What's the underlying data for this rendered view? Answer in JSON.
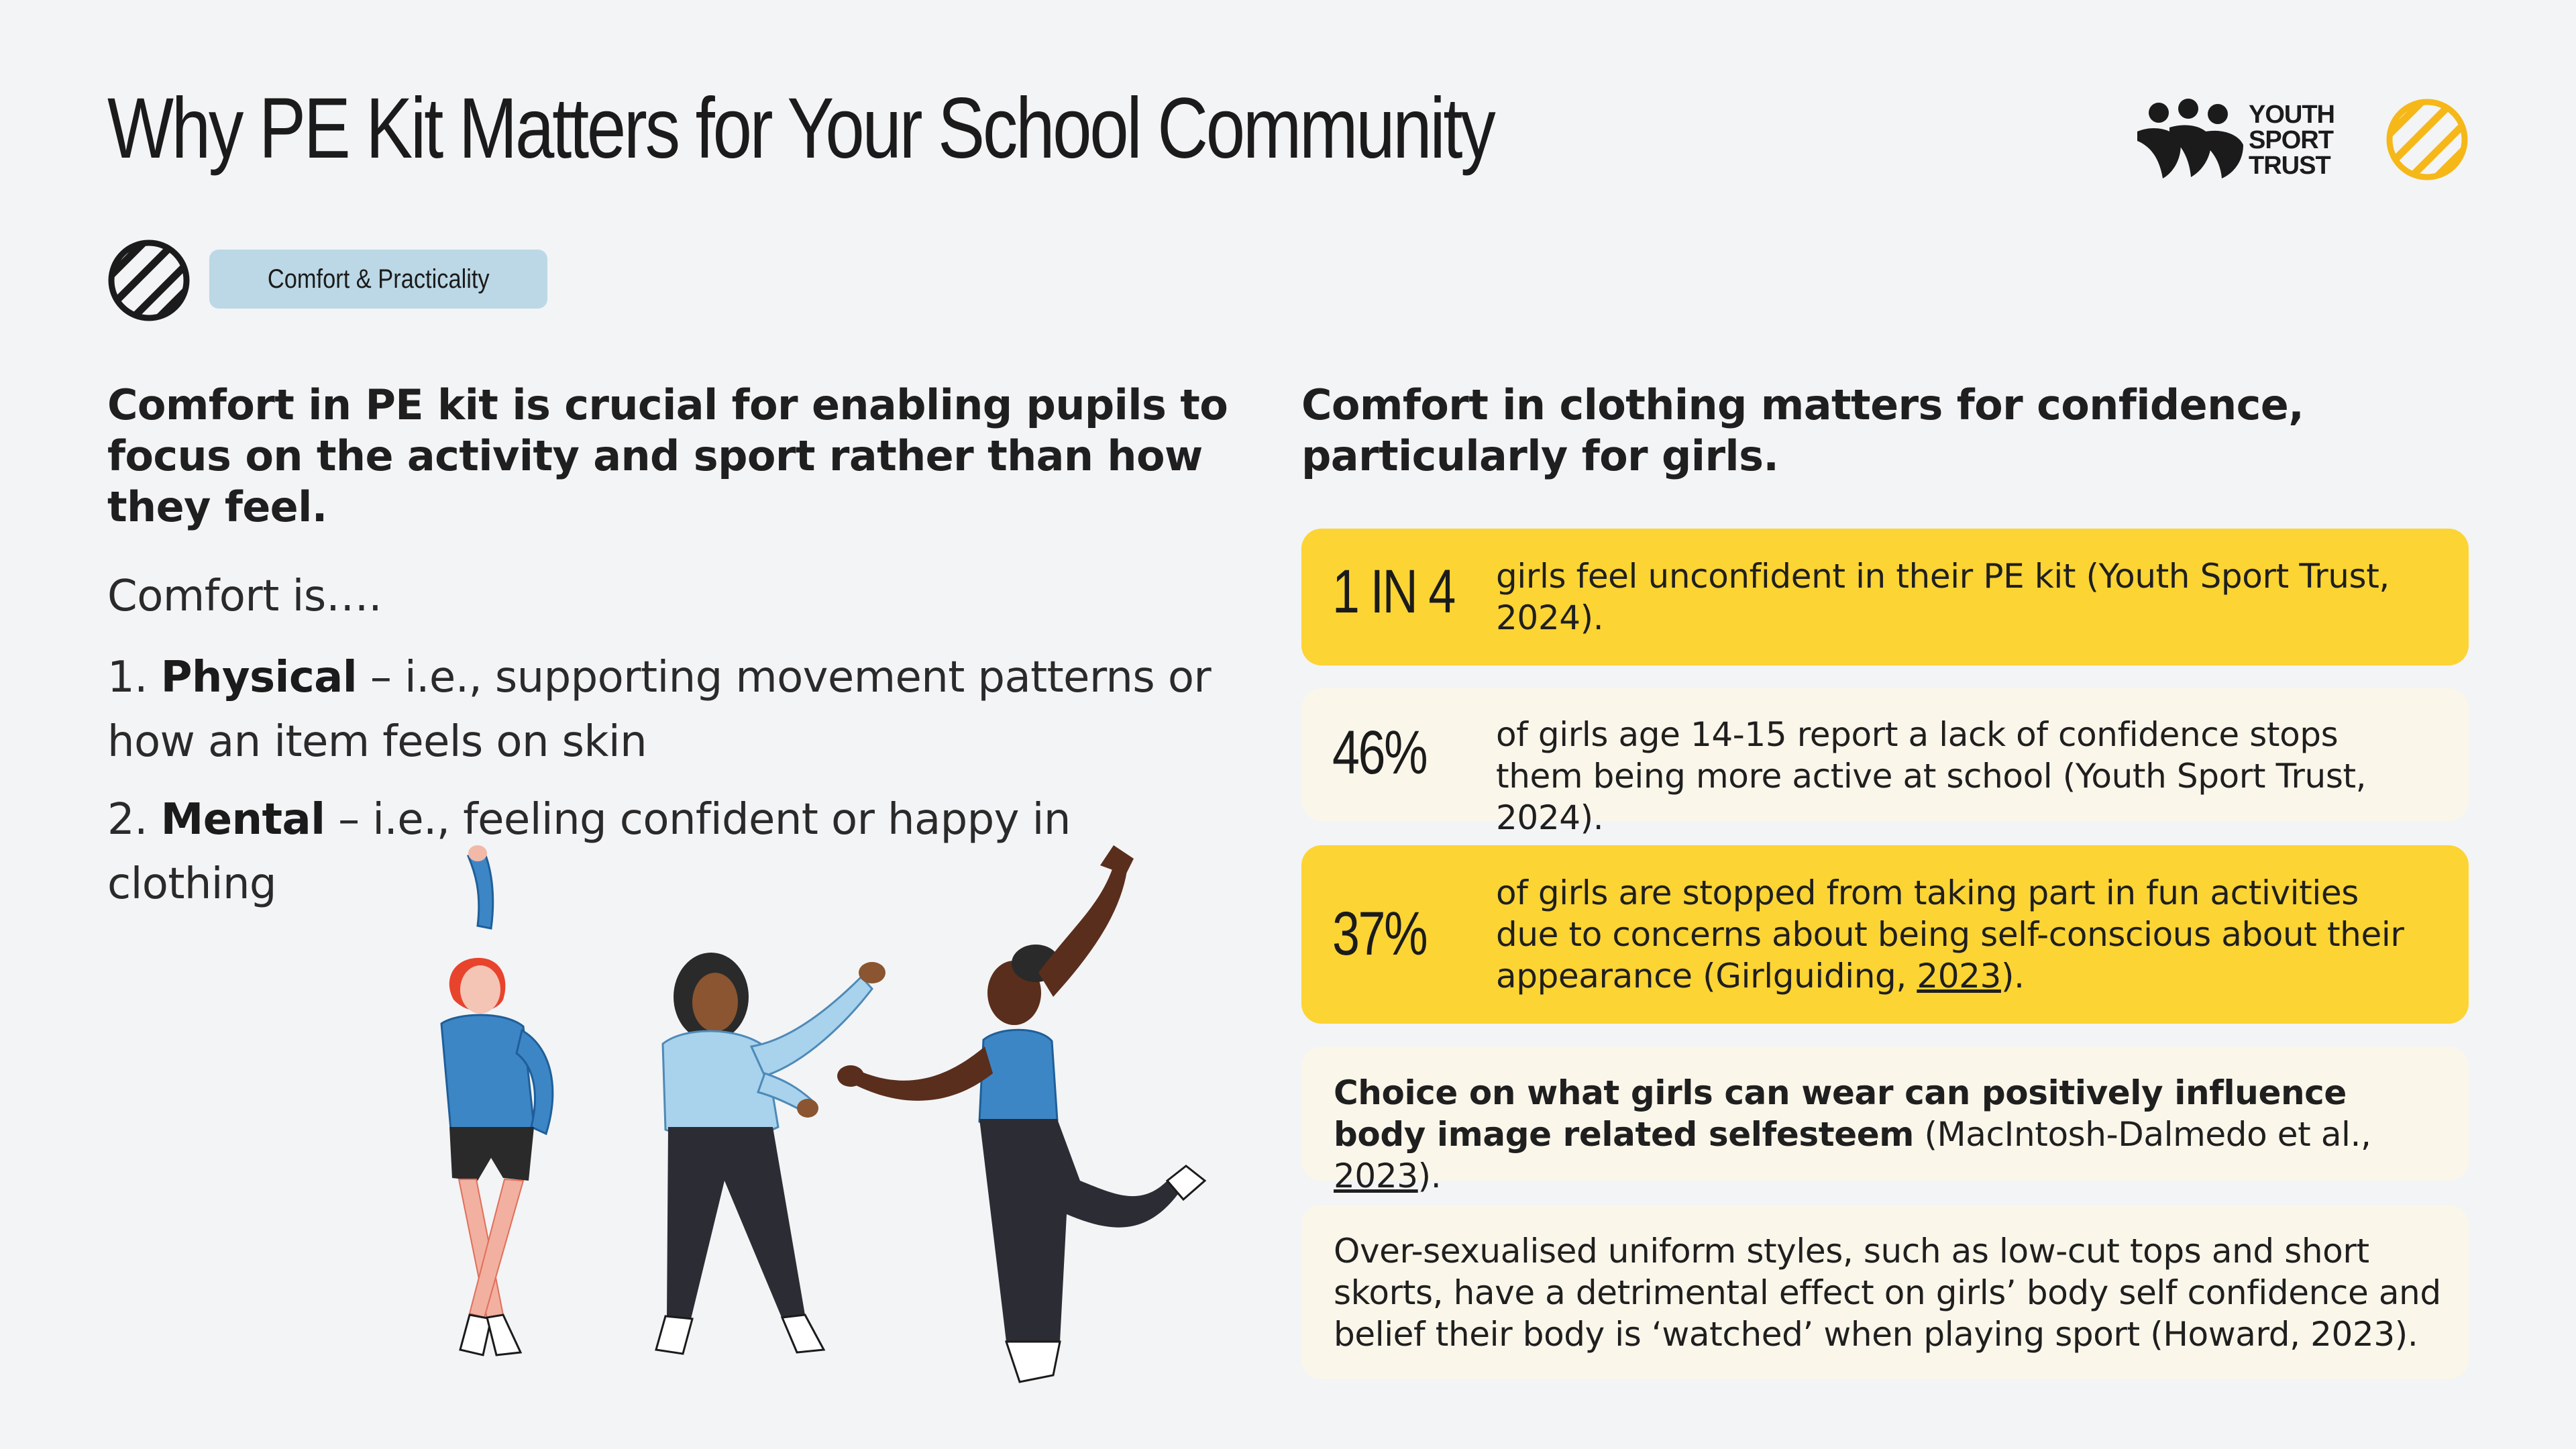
{
  "page": {
    "title": "Why PE Kit Matters for Your School Community",
    "tag": "Comfort & Practicality"
  },
  "brand": {
    "line1": "YOUTH",
    "line2": "SPORT",
    "line3": "TRUST",
    "accent_color": "#f5b818"
  },
  "left": {
    "lead": "Comfort in PE kit is crucial for enabling pupils to focus on the activity and sport rather than how they feel.",
    "comfort_is": "Comfort is….",
    "point1": {
      "num": "1.",
      "bold": "Physical",
      "text": " – i.e., supporting movement patterns or how an item feels on skin"
    },
    "point2": {
      "num": "2.",
      "bold": "Mental",
      "text": " – i.e., feeling confident or happy in clothing"
    }
  },
  "right": {
    "lead": "Comfort in clothing matters for confidence, particularly for girls.",
    "cards": [
      {
        "stat": "1 IN 4",
        "text": "girls feel unconfident in their PE kit (Youth Sport Trust, 2024).",
        "color": "#fcd434"
      },
      {
        "stat": "46%",
        "text": "of girls age 14-15 report a lack of confidence stops them being more active at school (Youth Sport Trust, 2024).",
        "color": "#fbf6ea"
      },
      {
        "stat": "37%",
        "text_before": "of girls are stopped from taking part in fun activities due to concerns about being self-conscious about their appearance (Girlguiding, ",
        "link": "2023",
        "text_after": ").",
        "color": "#fcd434"
      },
      {
        "bold": "Choice on what girls can wear can positively influence body image related selfesteem",
        "text_before": " (MacIntosh-Dalmedo et al., ",
        "link": "2023",
        "text_after": ").",
        "color": "#fbf6ea"
      },
      {
        "text": "Over-sexualised uniform styles, such as low-cut tops and short skorts, have a detrimental effect on girls’ body self confidence and belief their body is ‘watched’ when playing sport (Howard, 2023).",
        "color": "#fbf6ea"
      }
    ]
  }
}
